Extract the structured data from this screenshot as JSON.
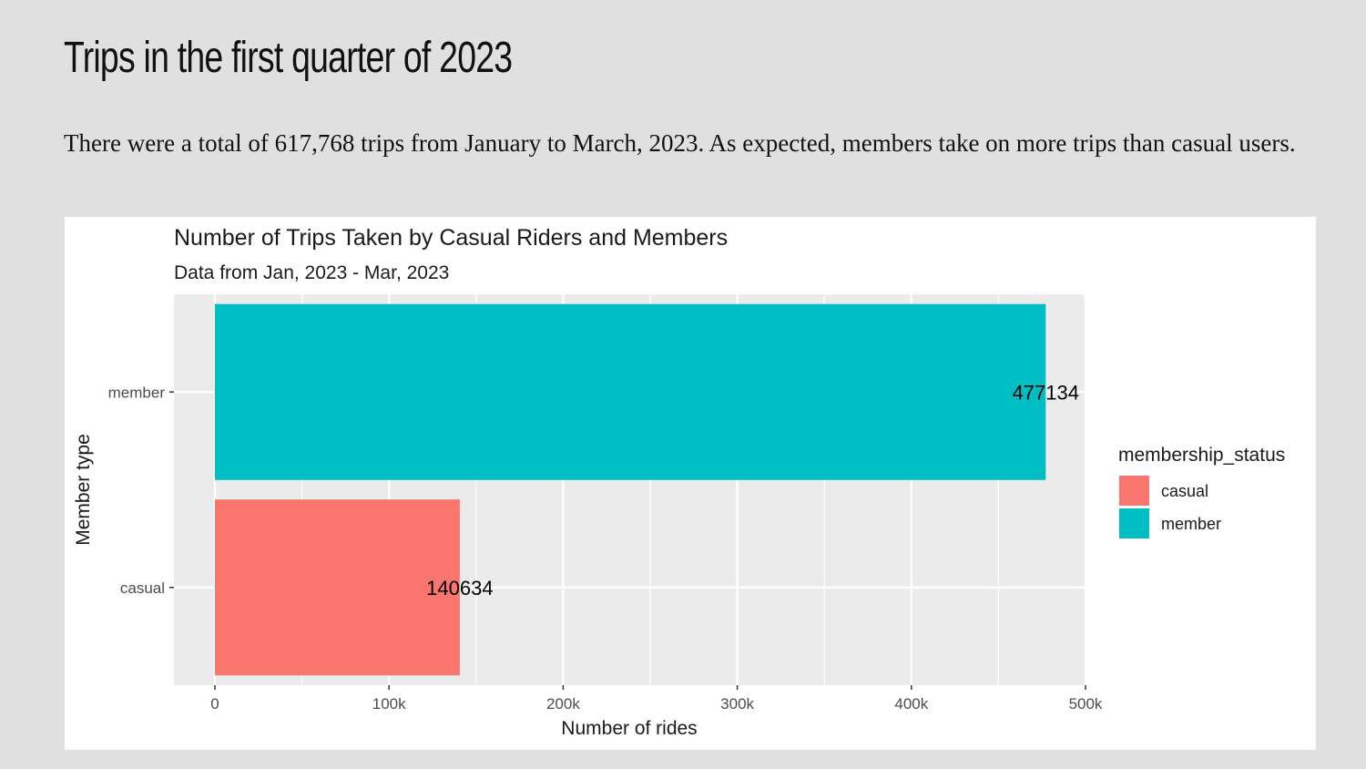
{
  "slide": {
    "title": "Trips in the first quarter of 2023",
    "body": "There were a total of 617,768 trips from January to March, 2023. As expected, members take on more trips than casual users."
  },
  "chart_data": {
    "type": "bar",
    "orientation": "horizontal",
    "title": "Number of Trips Taken by Casual Riders and Members",
    "subtitle": "Data from Jan, 2023 - Mar, 2023",
    "xlabel": "Number of rides",
    "ylabel": "Member type",
    "categories": [
      "casual",
      "member"
    ],
    "values": [
      140634,
      477134
    ],
    "data_labels": [
      "140634",
      "477134"
    ],
    "xlim": [
      0,
      500000
    ],
    "x_ticks": [
      0,
      100000,
      200000,
      300000,
      400000,
      500000
    ],
    "x_tick_labels": [
      "0",
      "100k",
      "200k",
      "300k",
      "400k",
      "500k"
    ],
    "colors": [
      "#F8766D",
      "#00BFC4"
    ],
    "panel_background": "#EBEBEB",
    "grid": true,
    "legend": {
      "title": "membership_status",
      "position": "right",
      "entries": [
        "casual",
        "member"
      ]
    }
  }
}
